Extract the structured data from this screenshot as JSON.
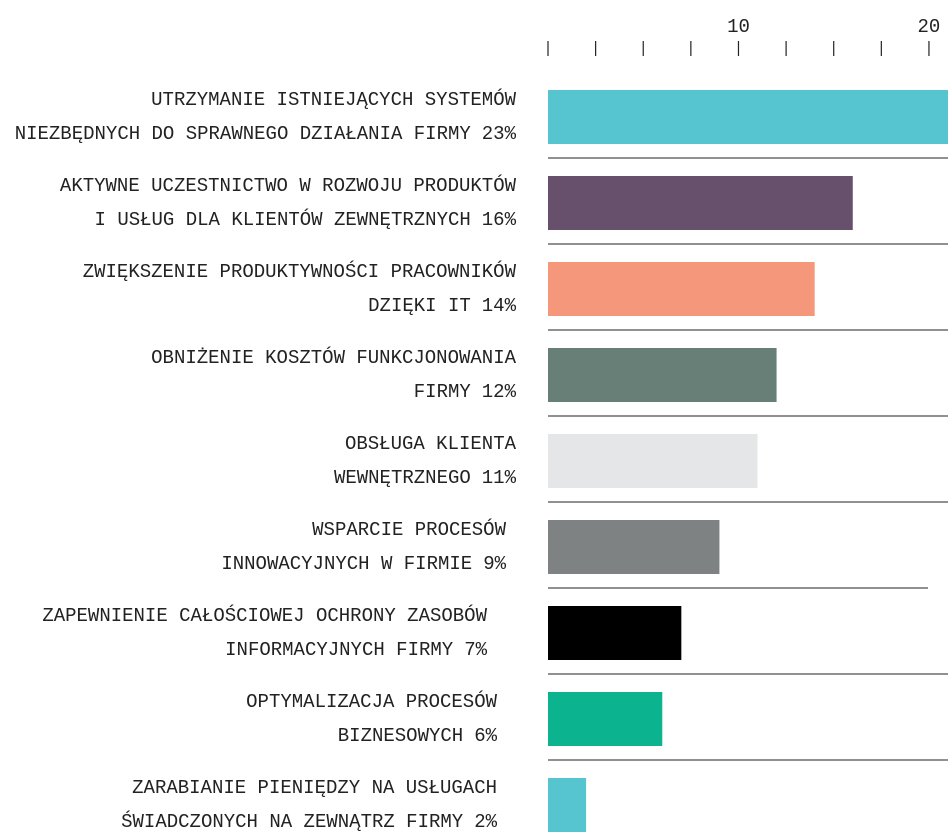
{
  "chart_data": {
    "type": "hbar",
    "categories": [
      [
        "UTRZYMANIE ISTNIEJĄCYCH SYSTEMÓW",
        "NIEZBĘDNYCH DO SPRAWNEGO DZIAŁANIA FIRMY"
      ],
      [
        "AKTYWNE UCZESTNICTWO W ROZWOJU PRODUKTÓW",
        "I USŁUG DLA KLIENTÓW ZEWNĘTRZNYCH"
      ],
      [
        "ZWIĘKSZENIE PRODUKTYWNOŚCI PRACOWNIKÓW",
        "DZIĘKI IT"
      ],
      [
        "OBNIŻENIE KOSZTÓW FUNKCJONOWANIA",
        "FIRMY"
      ],
      [
        "OBSŁUGA KLIENTA",
        "WEWNĘTRZNEGO"
      ],
      [
        "WSPARCIE PROCESÓW",
        "INNOWACYJNYCH W FIRMIE"
      ],
      [
        "ZAPEWNIENIE CAŁOŚCIOWEJ OCHRONY ZASOBÓW",
        "INFORMACYJNYCH FIRMY"
      ],
      [
        "OPTYMALIZACJA PROCESÓW",
        "BIZNESOWYCH"
      ],
      [
        "ZARABIANIE PIENIĘDZY NA USŁUGACH",
        "ŚWIADCZONYCH NA ZEWNĄTRZ FIRMY"
      ]
    ],
    "values": [
      23,
      16,
      14,
      12,
      11,
      9,
      7,
      6,
      2
    ],
    "value_labels": [
      "23%",
      "16%",
      "14%",
      "12%",
      "11%",
      "9%",
      "7%",
      "6%",
      "2%"
    ],
    "colors": [
      "#56c5d0",
      "#67506b",
      "#f5977a",
      "#687f78",
      "#e5e6e7",
      "#7f8283",
      "#000000",
      "#0bb38f",
      "#56c5d0"
    ],
    "xlim": [
      0,
      21
    ],
    "xticks": [
      10,
      20
    ],
    "minor_xticks": [
      0,
      2.5,
      5,
      7.5,
      10,
      12.5,
      15,
      17.5,
      20
    ]
  }
}
